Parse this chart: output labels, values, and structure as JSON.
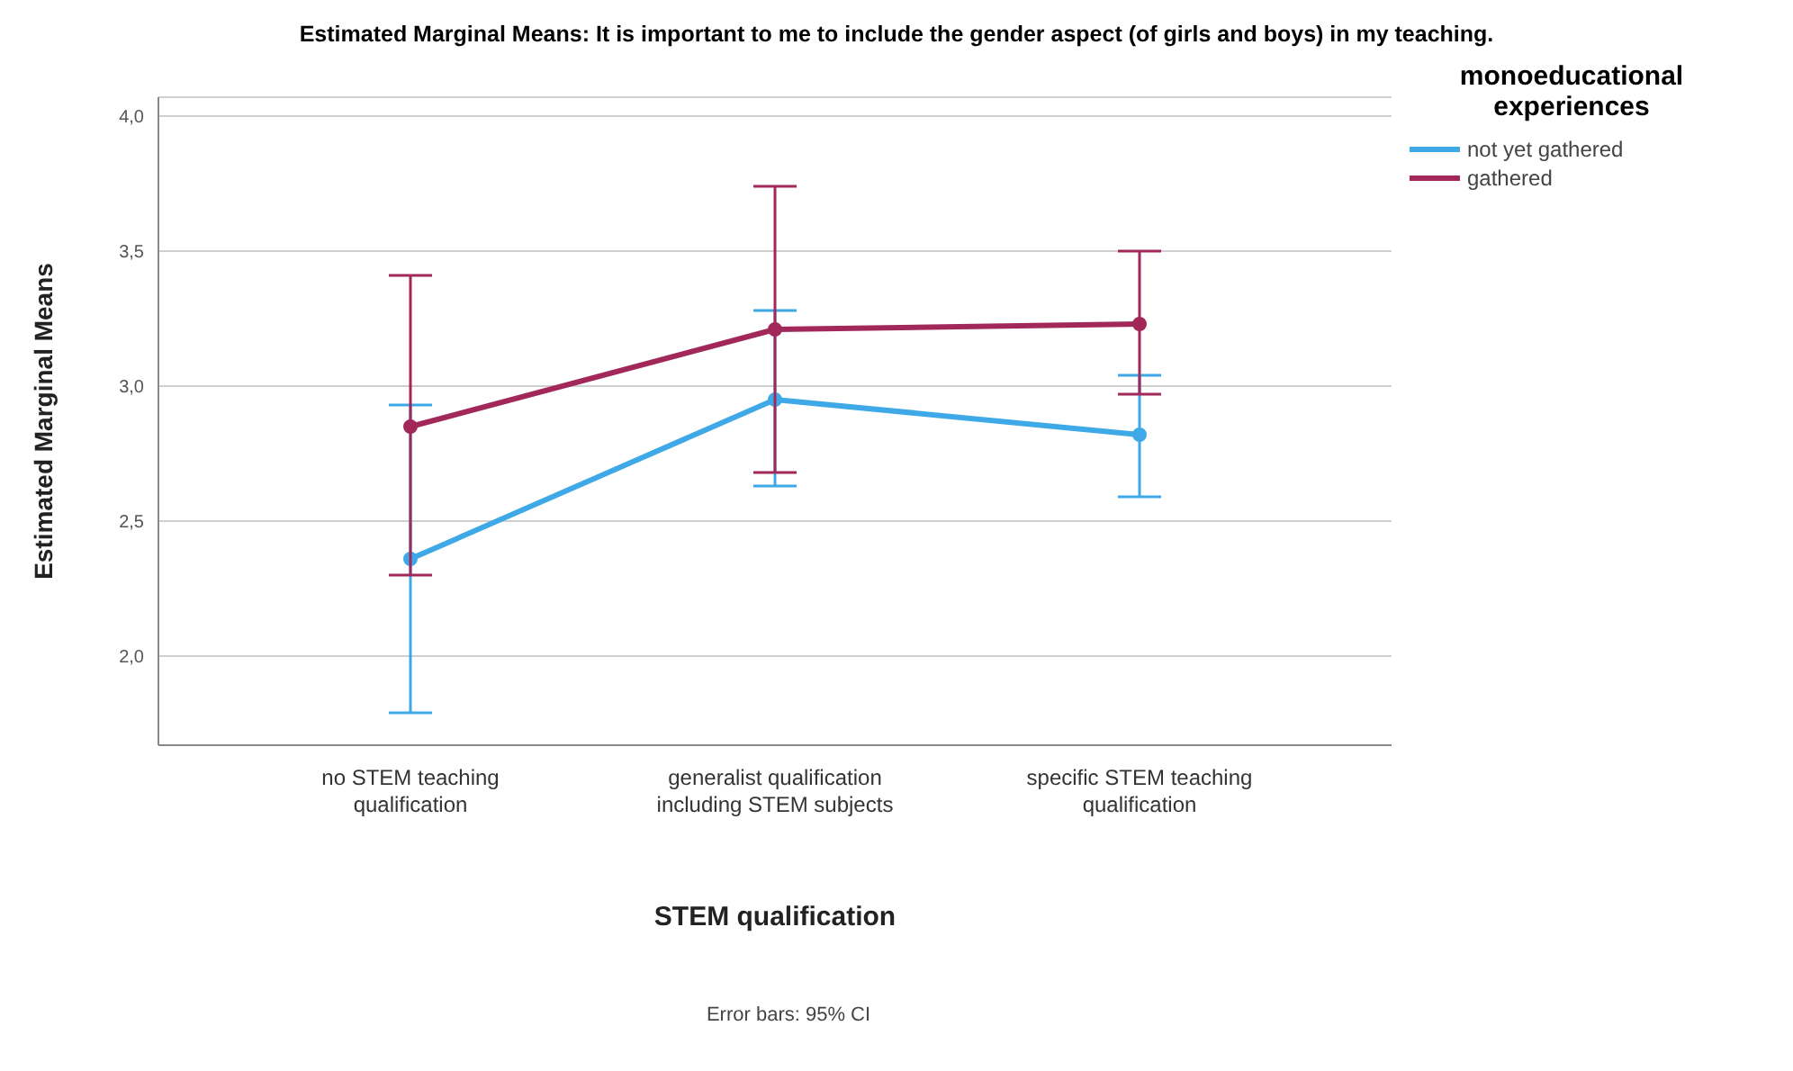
{
  "chart_data": {
    "type": "line",
    "title": "Estimated Marginal Means: It is important to me to include the gender aspect (of girls and boys) in my teaching.",
    "xlabel": "STEM qualification",
    "ylabel": "Estimated Marginal Means",
    "legend_title": "monoeducational experiences",
    "annotations": [
      "Error bars: 95% CI"
    ],
    "categories": [
      "no STEM teaching qualification",
      "generalist qualification including STEM subjects",
      "specific STEM teaching qualification"
    ],
    "series": [
      {
        "name": "not yet gathered",
        "color": "#3fa9e8",
        "values": [
          2.36,
          2.95,
          2.82
        ],
        "errors": [
          [
            1.79,
            2.93
          ],
          [
            2.63,
            3.28
          ],
          [
            2.59,
            3.04
          ]
        ]
      },
      {
        "name": "gathered",
        "color": "#a3285a",
        "values": [
          2.85,
          3.21,
          3.23
        ],
        "errors": [
          [
            2.3,
            3.41
          ],
          [
            2.68,
            3.74
          ],
          [
            2.97,
            3.5
          ]
        ]
      }
    ],
    "ylim": [
      1.67,
      4.07
    ],
    "yticks": [
      {
        "value": 2,
        "label": "2,0"
      },
      {
        "value": 2.5,
        "label": "2,5"
      },
      {
        "value": 3,
        "label": "3,0"
      },
      {
        "value": 3.5,
        "label": "3,5"
      },
      {
        "value": 4,
        "label": "4,0"
      }
    ],
    "grid": "y",
    "legend": "top right",
    "marker": "circle",
    "line_style": "solid"
  }
}
